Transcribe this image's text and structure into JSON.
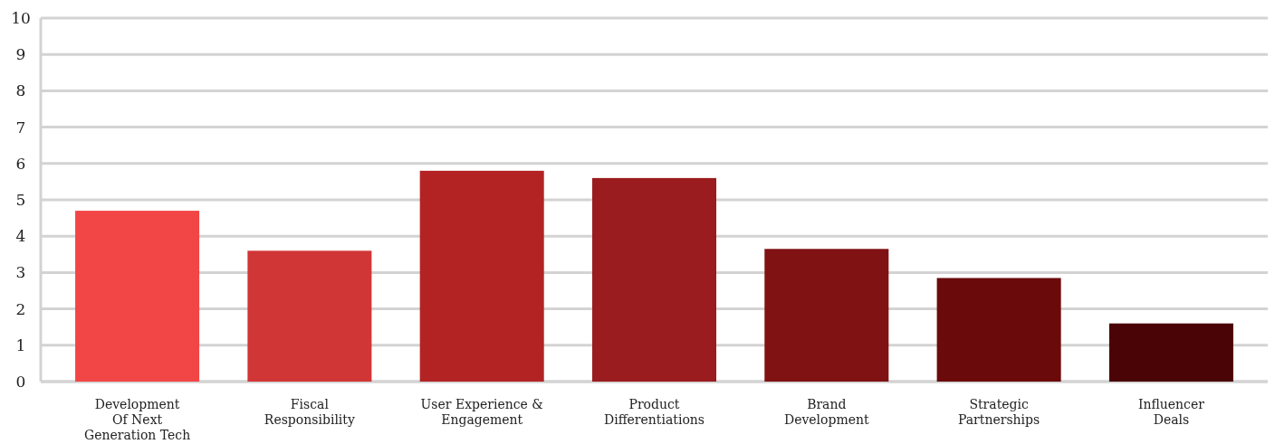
{
  "chart_data": {
    "type": "bar",
    "categories": [
      "Development\nOf Next\nGeneration Tech",
      "Fiscal\nResponsibility",
      "User Experience &\nEngagement",
      "Product\nDifferentiations",
      "Brand\nDevelopment",
      "Strategic\nPartnerships",
      "Influencer\nDeals"
    ],
    "values": [
      4.7,
      3.6,
      5.8,
      5.6,
      3.65,
      2.85,
      1.6
    ],
    "colors": [
      "#f24646",
      "#d13636",
      "#b32324",
      "#9a1c1e",
      "#801213",
      "#6b0a0b",
      "#4b0405"
    ],
    "ylim": [
      0,
      10
    ],
    "yticks": [
      0,
      1,
      2,
      3,
      4,
      5,
      6,
      7,
      8,
      9,
      10
    ],
    "grid": "y"
  }
}
